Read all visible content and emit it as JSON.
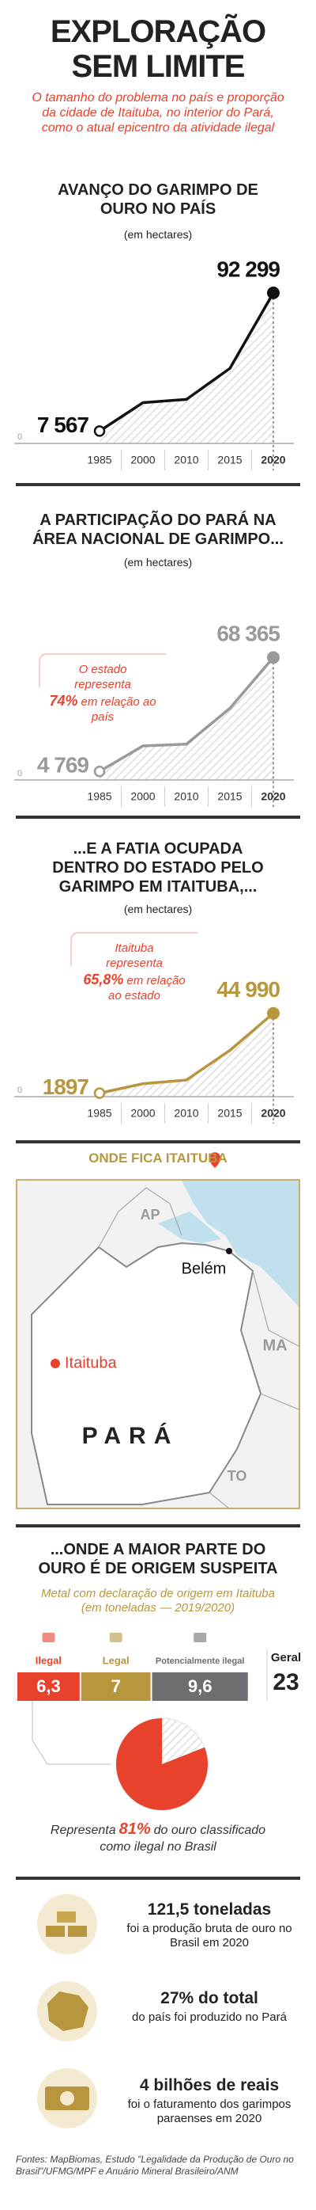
{
  "header": {
    "title": "EXPLORAÇÃO SEM LIMITE",
    "subtitle": "O tamanho do problema no país e proporção da cidade de Itaituba, no interior do Pará, como o atual epicentro da atividade ilegal"
  },
  "chart_data": [
    {
      "type": "line",
      "title": "AVANÇO DO GARIMPO DE OURO NO PAÍS",
      "subtitle": "(em hectares)",
      "categories": [
        "1985",
        "2000",
        "2010",
        "2015",
        "2020"
      ],
      "series": [
        {
          "color": "#111111",
          "values": [
            7567,
            25000,
            27000,
            46000,
            92299
          ],
          "value_labels": [
            "7 567",
            null,
            null,
            null,
            "92 299"
          ]
        }
      ],
      "ylim": [
        0,
        100000
      ],
      "yticks": [
        0
      ]
    },
    {
      "type": "line",
      "title": "A PARTICIPAÇÃO DO PARÁ NA ÁREA NACIONAL DE GARIMPO...",
      "subtitle": "(em hectares)",
      "categories": [
        "1985",
        "2000",
        "2010",
        "2015",
        "2020"
      ],
      "series": [
        {
          "color": "#9a9a9a",
          "values": [
            4769,
            19000,
            20000,
            40000,
            68365
          ],
          "value_labels": [
            "4 769",
            null,
            null,
            null,
            "68 365"
          ]
        }
      ],
      "ylim": [
        0,
        80000
      ],
      "yticks": [
        0
      ],
      "annotation": {
        "text_before": "O estado representa",
        "highlight": "74%",
        "text_after": "em relação ao país"
      }
    },
    {
      "type": "line",
      "title": "...E A FATIA OCUPADA DENTRO DO ESTADO PELO GARIMPO EM ITAITUBA,...",
      "subtitle": "(em hectares)",
      "categories": [
        "1985",
        "2000",
        "2010",
        "2015",
        "2020"
      ],
      "series": [
        {
          "color": "#b8963e",
          "values": [
            1897,
            7000,
            9000,
            25000,
            44990
          ],
          "value_labels": [
            "1897",
            null,
            null,
            null,
            "44 990"
          ]
        }
      ],
      "ylim": [
        0,
        50000
      ],
      "yticks": [
        0
      ],
      "annotation": {
        "text_before": "Itaituba representa",
        "highlight": "65,8%",
        "text_after": "em relação ao estado"
      }
    },
    {
      "type": "stacked_bar",
      "title": "...ONDE A MAIOR PARTE DO OURO É DE ORIGEM SUSPEITA",
      "subtitle": "Metal com declaração de origem em Itaituba (em toneladas — 2019/2020)",
      "series": [
        {
          "name": "Ilegal",
          "color": "#e8412c",
          "values": [
            6.3
          ],
          "value_labels": [
            "6,3"
          ]
        },
        {
          "name": "Legal",
          "color": "#b8963e",
          "values": [
            7
          ]
        },
        {
          "name": "Potencialmente ilegal",
          "color": "#6d6e71",
          "values": [
            9.6
          ],
          "value_labels": [
            "9,6"
          ]
        }
      ],
      "total": {
        "label": "Geral",
        "value": 23
      },
      "xlim": [
        0,
        23
      ]
    },
    {
      "type": "pie",
      "values": [
        81
      ],
      "value_labels": [
        "81%"
      ],
      "color": "#e8412c",
      "text_before": "Representa",
      "text_after": "do ouro classificado como ilegal no Brasil"
    }
  ],
  "map": {
    "title": "ONDE FICA ITAITUBA",
    "labels": [
      "AP",
      "Belém",
      "MA",
      "Itaituba",
      "PARÁ",
      "TO"
    ]
  },
  "facts": [
    {
      "headline": "121,5 toneladas",
      "text": "foi a produção bruta de ouro no Brasil em 2020"
    },
    {
      "headline": "27% do total",
      "text": "do país foi produzido no Pará"
    },
    {
      "headline": "4 bilhões de reais",
      "text": "foi o faturamento dos garimpos paraenses em 2020"
    }
  ],
  "sources": "Fontes: MapBiomas, Estudo \"Legalidade da Produção de Ouro no Brasil\"/UFMG/MPF e Anuário Mineral Brasileiro/ANM"
}
